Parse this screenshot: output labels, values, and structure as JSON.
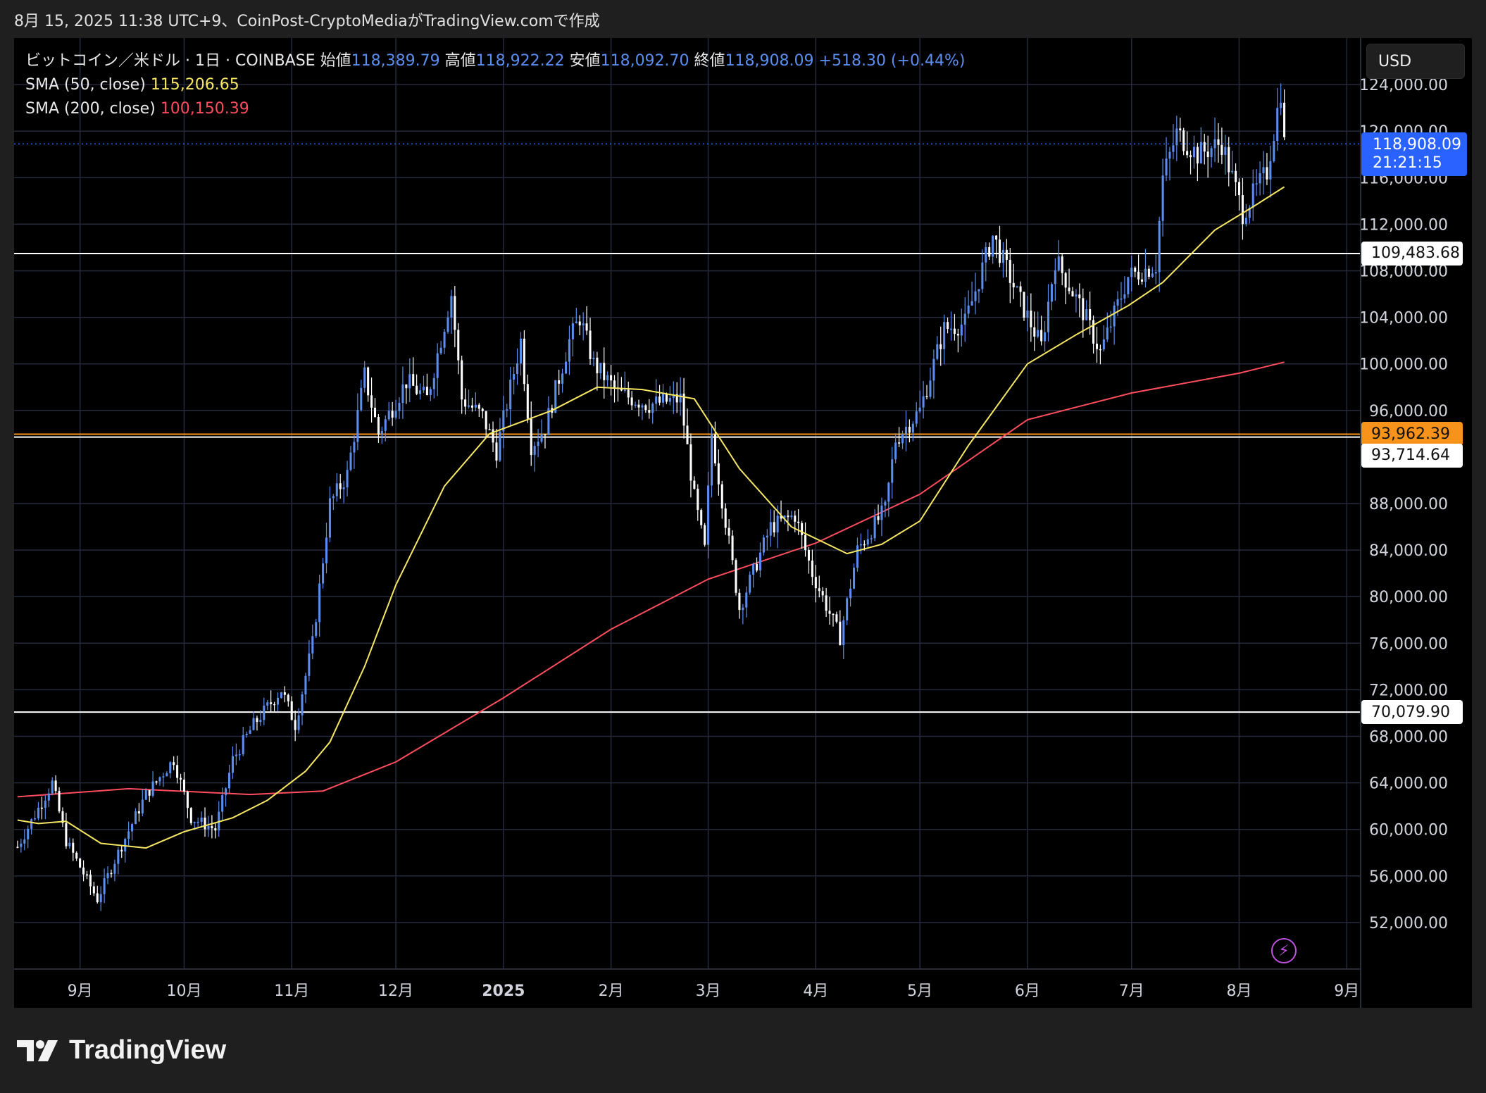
{
  "header": {
    "caption": "8月 15, 2025 11:38 UTC+9、CoinPost-CryptoMediaがTradingView.comで作成"
  },
  "legend": {
    "symbol": "ビットコイン／米ドル · 1日 · COINBASE",
    "open_label": "始値",
    "open": "118,389.79",
    "high_label": "高値",
    "high": "118,922.22",
    "low_label": "安値",
    "low": "118,092.70",
    "close_label": "終値",
    "close": "118,908.09",
    "change": "+518.30 (+0.44%)",
    "sma50_label": "SMA (50, close)",
    "sma50_value": "115,206.65",
    "sma200_label": "SMA (200, close)",
    "sma200_value": "100,150.39"
  },
  "currency_button": "USD",
  "last_price": {
    "price": "118,908.09",
    "countdown": "21:21:15"
  },
  "horizontal_lines": [
    {
      "price": 109483.68,
      "label": "109,483.68",
      "color": "#ffffff"
    },
    {
      "price": 93962.39,
      "label": "93,962.39",
      "color": "#f7931a"
    },
    {
      "price": 93714.64,
      "label": "93,714.64",
      "color": "#ffffff"
    },
    {
      "price": 70079.9,
      "label": "70,079.90",
      "color": "#ffffff"
    }
  ],
  "brand": "TradingView",
  "colors": {
    "up": "#5b8def",
    "down": "#ffffff",
    "sma50": "#f5e663",
    "sma200": "#ff4d5e",
    "grid": "#252a3d",
    "background": "#000000"
  },
  "chart_data": {
    "type": "candlestick",
    "title": "ビットコイン／米ドル · 1日 · COINBASE",
    "ylim": [
      48000,
      128000
    ],
    "y_ticks": [
      52000,
      56000,
      60000,
      64000,
      68000,
      72000,
      76000,
      80000,
      84000,
      88000,
      96000,
      100000,
      104000,
      108000,
      112000,
      116000,
      120000,
      124000
    ],
    "y_tick_labels": [
      "52,000.00",
      "56,000.00",
      "60,000.00",
      "64,000.00",
      "68,000.00",
      "72,000.00",
      "76,000.00",
      "80,000.00",
      "84,000.00",
      "88,000.00",
      "96,000.00",
      "100,000.00",
      "104,000.00",
      "108,000.00",
      "112,000.00",
      "116,000.00",
      "120,000.00",
      "124,000.00"
    ],
    "x_range": [
      "2024-08-13",
      "2025-09-05"
    ],
    "x_ticks": [
      {
        "date": "2024-09-01",
        "label": "9月"
      },
      {
        "date": "2024-10-01",
        "label": "10月"
      },
      {
        "date": "2024-11-01",
        "label": "11月"
      },
      {
        "date": "2024-12-01",
        "label": "12月"
      },
      {
        "date": "2025-01-01",
        "label": "2025",
        "bold": true
      },
      {
        "date": "2025-02-01",
        "label": "2月"
      },
      {
        "date": "2025-03-01",
        "label": "3月"
      },
      {
        "date": "2025-04-01",
        "label": "4月"
      },
      {
        "date": "2025-05-01",
        "label": "5月"
      },
      {
        "date": "2025-06-01",
        "label": "6月"
      },
      {
        "date": "2025-07-01",
        "label": "7月"
      },
      {
        "date": "2025-08-01",
        "label": "8月"
      },
      {
        "date": "2025-09-01",
        "label": "9月"
      }
    ],
    "close_path": {
      "start": "2024-08-14",
      "end": "2025-08-14",
      "anchors": [
        [
          "2024-08-14",
          58500
        ],
        [
          "2024-08-24",
          64000
        ],
        [
          "2024-08-28",
          59000
        ],
        [
          "2024-09-06",
          54000
        ],
        [
          "2024-09-12",
          58000
        ],
        [
          "2024-09-20",
          63000
        ],
        [
          "2024-09-28",
          66000
        ],
        [
          "2024-10-03",
          61000
        ],
        [
          "2024-10-10",
          60000
        ],
        [
          "2024-10-15",
          66000
        ],
        [
          "2024-10-21",
          69000
        ],
        [
          "2024-10-29",
          72000
        ],
        [
          "2024-11-02",
          69000
        ],
        [
          "2024-11-07",
          76000
        ],
        [
          "2024-11-12",
          88000
        ],
        [
          "2024-11-17",
          90500
        ],
        [
          "2024-11-22",
          99000
        ],
        [
          "2024-11-26",
          94000
        ],
        [
          "2024-12-04",
          98500
        ],
        [
          "2024-12-10",
          97000
        ],
        [
          "2024-12-17",
          106000
        ],
        [
          "2024-12-20",
          97000
        ],
        [
          "2024-12-26",
          95500
        ],
        [
          "2024-12-30",
          92500
        ],
        [
          "2025-01-06",
          102000
        ],
        [
          "2025-01-09",
          93000
        ],
        [
          "2025-01-13",
          94500
        ],
        [
          "2025-01-20",
          102000
        ],
        [
          "2025-01-23",
          104000
        ],
        [
          "2025-01-27",
          100000
        ],
        [
          "2025-02-03",
          97500
        ],
        [
          "2025-02-12",
          96500
        ],
        [
          "2025-02-21",
          97000
        ],
        [
          "2025-02-25",
          88500
        ],
        [
          "2025-02-28",
          84000
        ],
        [
          "2025-03-02",
          94000
        ],
        [
          "2025-03-10",
          79000
        ],
        [
          "2025-03-19",
          86000
        ],
        [
          "2025-03-26",
          87000
        ],
        [
          "2025-03-31",
          82000
        ],
        [
          "2025-04-08",
          76500
        ],
        [
          "2025-04-13",
          84000
        ],
        [
          "2025-04-21",
          87500
        ],
        [
          "2025-04-24",
          93500
        ],
        [
          "2025-05-01",
          96000
        ],
        [
          "2025-05-08",
          103000
        ],
        [
          "2025-05-14",
          103500
        ],
        [
          "2025-05-22",
          111000
        ],
        [
          "2025-05-29",
          106000
        ],
        [
          "2025-06-05",
          101500
        ],
        [
          "2025-06-09",
          109000
        ],
        [
          "2025-06-17",
          104500
        ],
        [
          "2025-06-22",
          101000
        ],
        [
          "2025-06-30",
          107500
        ],
        [
          "2025-07-08",
          108500
        ],
        [
          "2025-07-10",
          116000
        ],
        [
          "2025-07-14",
          119800
        ],
        [
          "2025-07-20",
          118000
        ],
        [
          "2025-07-27",
          119000
        ],
        [
          "2025-08-02",
          113000
        ],
        [
          "2025-08-09",
          116500
        ],
        [
          "2025-08-13",
          123500
        ],
        [
          "2025-08-14",
          118900
        ]
      ]
    },
    "sma50": {
      "label": "SMA (50, close)",
      "last": 115206.65,
      "points": [
        [
          "2024-08-14",
          60800
        ],
        [
          "2024-08-20",
          60500
        ],
        [
          "2024-08-28",
          60700
        ],
        [
          "2024-09-07",
          58800
        ],
        [
          "2024-09-20",
          58400
        ],
        [
          "2024-10-01",
          59800
        ],
        [
          "2024-10-15",
          61000
        ],
        [
          "2024-10-25",
          62500
        ],
        [
          "2024-11-05",
          65000
        ],
        [
          "2024-11-12",
          67500
        ],
        [
          "2024-11-22",
          74000
        ],
        [
          "2024-12-01",
          81000
        ],
        [
          "2024-12-15",
          89500
        ],
        [
          "2024-12-28",
          94000
        ],
        [
          "2025-01-15",
          96000
        ],
        [
          "2025-01-28",
          98000
        ],
        [
          "2025-02-10",
          97800
        ],
        [
          "2025-02-25",
          97000
        ],
        [
          "2025-03-10",
          91000
        ],
        [
          "2025-03-25",
          86000
        ],
        [
          "2025-04-10",
          83700
        ],
        [
          "2025-04-20",
          84500
        ],
        [
          "2025-05-01",
          86500
        ],
        [
          "2025-05-15",
          93000
        ],
        [
          "2025-06-01",
          100000
        ],
        [
          "2025-06-15",
          102500
        ],
        [
          "2025-06-30",
          105000
        ],
        [
          "2025-07-10",
          107000
        ],
        [
          "2025-07-25",
          111500
        ],
        [
          "2025-08-05",
          113500
        ],
        [
          "2025-08-14",
          115207
        ]
      ]
    },
    "sma200": {
      "label": "SMA (200, close)",
      "last": 100150.39,
      "points": [
        [
          "2024-08-14",
          62800
        ],
        [
          "2024-09-15",
          63500
        ],
        [
          "2024-10-20",
          63000
        ],
        [
          "2024-11-10",
          63300
        ],
        [
          "2024-12-01",
          65800
        ],
        [
          "2025-01-01",
          71300
        ],
        [
          "2025-02-01",
          77200
        ],
        [
          "2025-03-01",
          81500
        ],
        [
          "2025-04-01",
          84600
        ],
        [
          "2025-05-01",
          88800
        ],
        [
          "2025-06-01",
          95200
        ],
        [
          "2025-07-01",
          97500
        ],
        [
          "2025-08-01",
          99200
        ],
        [
          "2025-08-14",
          100150
        ]
      ]
    }
  }
}
